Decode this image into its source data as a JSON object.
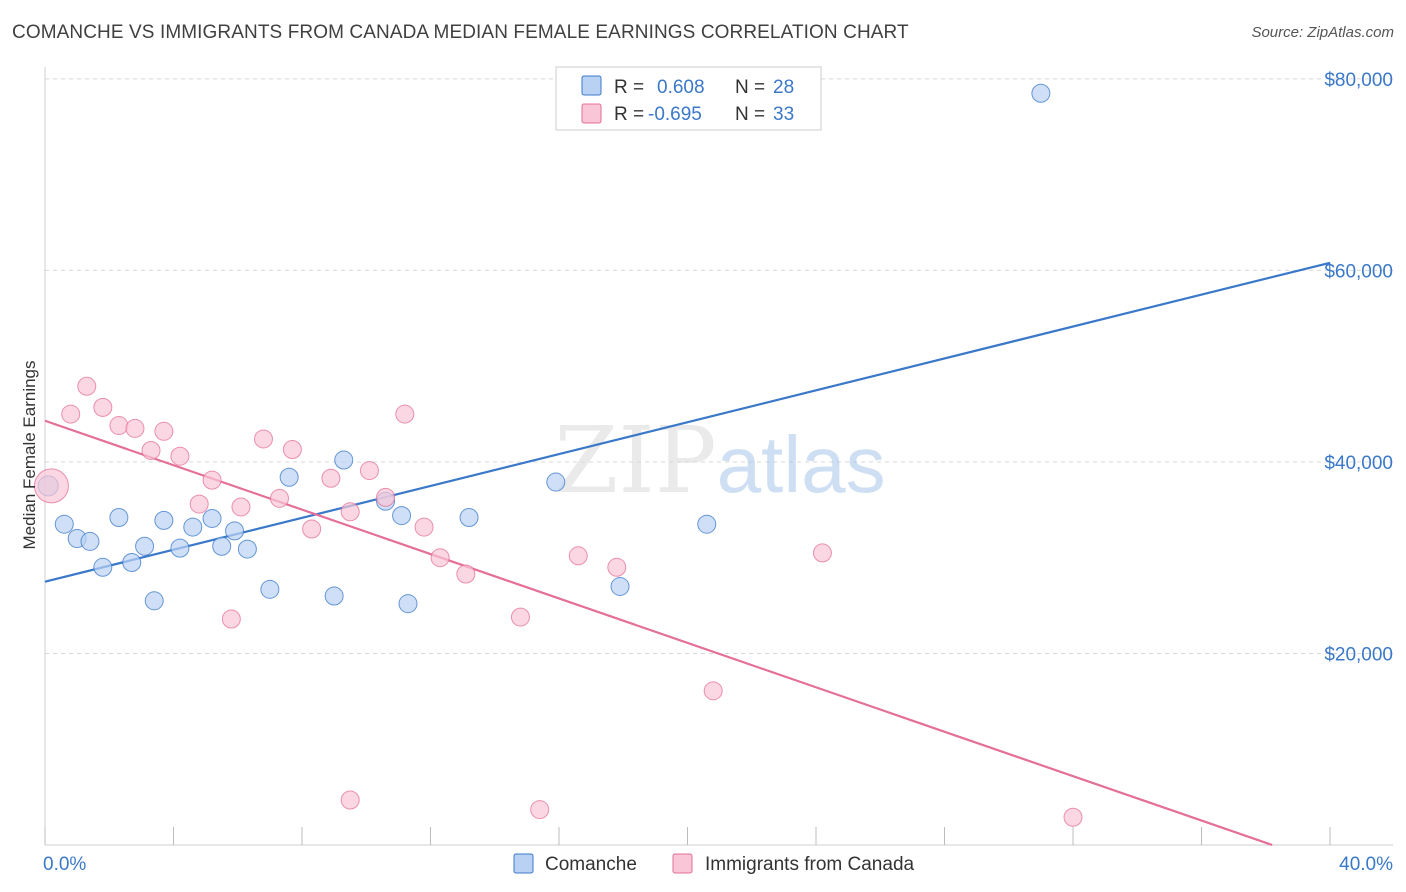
{
  "header": {
    "title": "COMANCHE VS IMMIGRANTS FROM CANADA MEDIAN FEMALE EARNINGS CORRELATION CHART",
    "source": "Source: ZipAtlas.com"
  },
  "colors": {
    "comanche": "#3a78c9",
    "comanche_fill": "#b9d2f3",
    "canada": "#e46f98",
    "canada_fill": "#f8c6d6",
    "grid": "#d8d8d8",
    "tick_text": "#3a78c9"
  },
  "legend": {
    "r_label": "R =",
    "n_label": "N =",
    "comanche": {
      "r": "0.608",
      "n": "28"
    },
    "canada": {
      "r": "-0.695",
      "n": "33"
    }
  },
  "chart_data": {
    "type": "scatter",
    "title": "COMANCHE VS IMMIGRANTS FROM CANADA MEDIAN FEMALE EARNINGS CORRELATION CHART",
    "xlabel": "",
    "ylabel": "Median Female Earnings",
    "xlim": [
      0,
      40
    ],
    "ylim": [
      0,
      82000
    ],
    "x_tick_labels": [
      "0.0%",
      "40.0%"
    ],
    "y_ticks": [
      20000,
      40000,
      60000,
      80000
    ],
    "y_tick_labels": [
      "$20,000",
      "$40,000",
      "$60,000",
      "$80,000"
    ],
    "legend_position": "bottom",
    "watermark": "ZIPatlas",
    "series": [
      {
        "name": "Comanche",
        "color": "#3a78c9",
        "points": [
          [
            0.1,
            37500
          ],
          [
            0.6,
            33500
          ],
          [
            1.0,
            32000
          ],
          [
            1.4,
            31700
          ],
          [
            1.8,
            29000
          ],
          [
            2.3,
            34200
          ],
          [
            2.7,
            29500
          ],
          [
            3.1,
            31200
          ],
          [
            3.4,
            25500
          ],
          [
            3.7,
            33900
          ],
          [
            4.2,
            31000
          ],
          [
            4.6,
            33200
          ],
          [
            5.2,
            34100
          ],
          [
            5.5,
            31200
          ],
          [
            5.9,
            32800
          ],
          [
            6.3,
            30900
          ],
          [
            7.0,
            26700
          ],
          [
            7.6,
            38400
          ],
          [
            9.3,
            40200
          ],
          [
            9.0,
            26000
          ],
          [
            10.6,
            35900
          ],
          [
            11.1,
            34400
          ],
          [
            11.3,
            25200
          ],
          [
            13.2,
            34200
          ],
          [
            15.9,
            37900
          ],
          [
            17.9,
            27000
          ],
          [
            20.6,
            33500
          ],
          [
            31.0,
            78500
          ]
        ],
        "trend": {
          "x": [
            0,
            40
          ],
          "y": [
            27500,
            60800
          ]
        }
      },
      {
        "name": "Immigrants from Canada",
        "color": "#e46f98",
        "points": [
          [
            0.2,
            37500
          ],
          [
            0.8,
            45000
          ],
          [
            1.3,
            47900
          ],
          [
            1.8,
            45700
          ],
          [
            2.3,
            43800
          ],
          [
            2.8,
            43500
          ],
          [
            3.3,
            41200
          ],
          [
            3.7,
            43200
          ],
          [
            4.2,
            40600
          ],
          [
            4.8,
            35600
          ],
          [
            5.2,
            38100
          ],
          [
            6.1,
            35300
          ],
          [
            6.8,
            42400
          ],
          [
            7.3,
            36200
          ],
          [
            7.7,
            41300
          ],
          [
            8.3,
            33000
          ],
          [
            8.9,
            38300
          ],
          [
            9.5,
            34800
          ],
          [
            10.1,
            39100
          ],
          [
            5.8,
            23600
          ],
          [
            10.6,
            36300
          ],
          [
            11.2,
            45000
          ],
          [
            11.8,
            33200
          ],
          [
            12.3,
            30000
          ],
          [
            13.1,
            28300
          ],
          [
            14.8,
            23800
          ],
          [
            16.6,
            30200
          ],
          [
            17.8,
            29000
          ],
          [
            20.8,
            16100
          ],
          [
            24.2,
            30500
          ],
          [
            9.5,
            4700
          ],
          [
            15.4,
            3700
          ],
          [
            32.0,
            2900
          ]
        ],
        "trend": {
          "x": [
            0,
            38.2
          ],
          "y": [
            44300,
            0
          ]
        }
      }
    ]
  }
}
